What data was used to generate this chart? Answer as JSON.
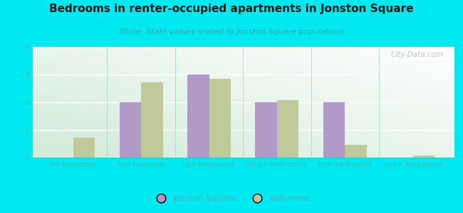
{
  "title": "Bedrooms in renter-occupied apartments in Jonston Square",
  "subtitle": "(Note: State values scaled to Jonston Square population)",
  "categories": [
    "no bedroom",
    "one bedroom",
    "two bedrooms",
    "three bedrooms",
    "four bedrooms",
    "five+ bedrooms"
  ],
  "jonston_square": [
    0,
    2.0,
    3.0,
    2.0,
    2.0,
    0
  ],
  "baltimore": [
    0.72,
    2.72,
    2.85,
    2.08,
    0.45,
    0.08
  ],
  "bar_color_jonston": "#b399c8",
  "bar_color_baltimore": "#bfc99a",
  "background_outer": "#00e8f0",
  "background_plot_tl": "#d6ede0",
  "background_plot_tr": "#f5f8f2",
  "background_plot_br": "#ffffff",
  "grid_color": "#ffffff",
  "tick_color": "#3abcbc",
  "ylim": [
    0,
    4
  ],
  "yticks": [
    0,
    1,
    2,
    3,
    4
  ],
  "bar_width": 0.32,
  "legend_jonston": "Jonston Square",
  "legend_baltimore": "Baltimore",
  "title_fontsize": 11,
  "subtitle_fontsize": 8,
  "axis_label_fontsize": 7.5,
  "watermark": "City-Data.com"
}
